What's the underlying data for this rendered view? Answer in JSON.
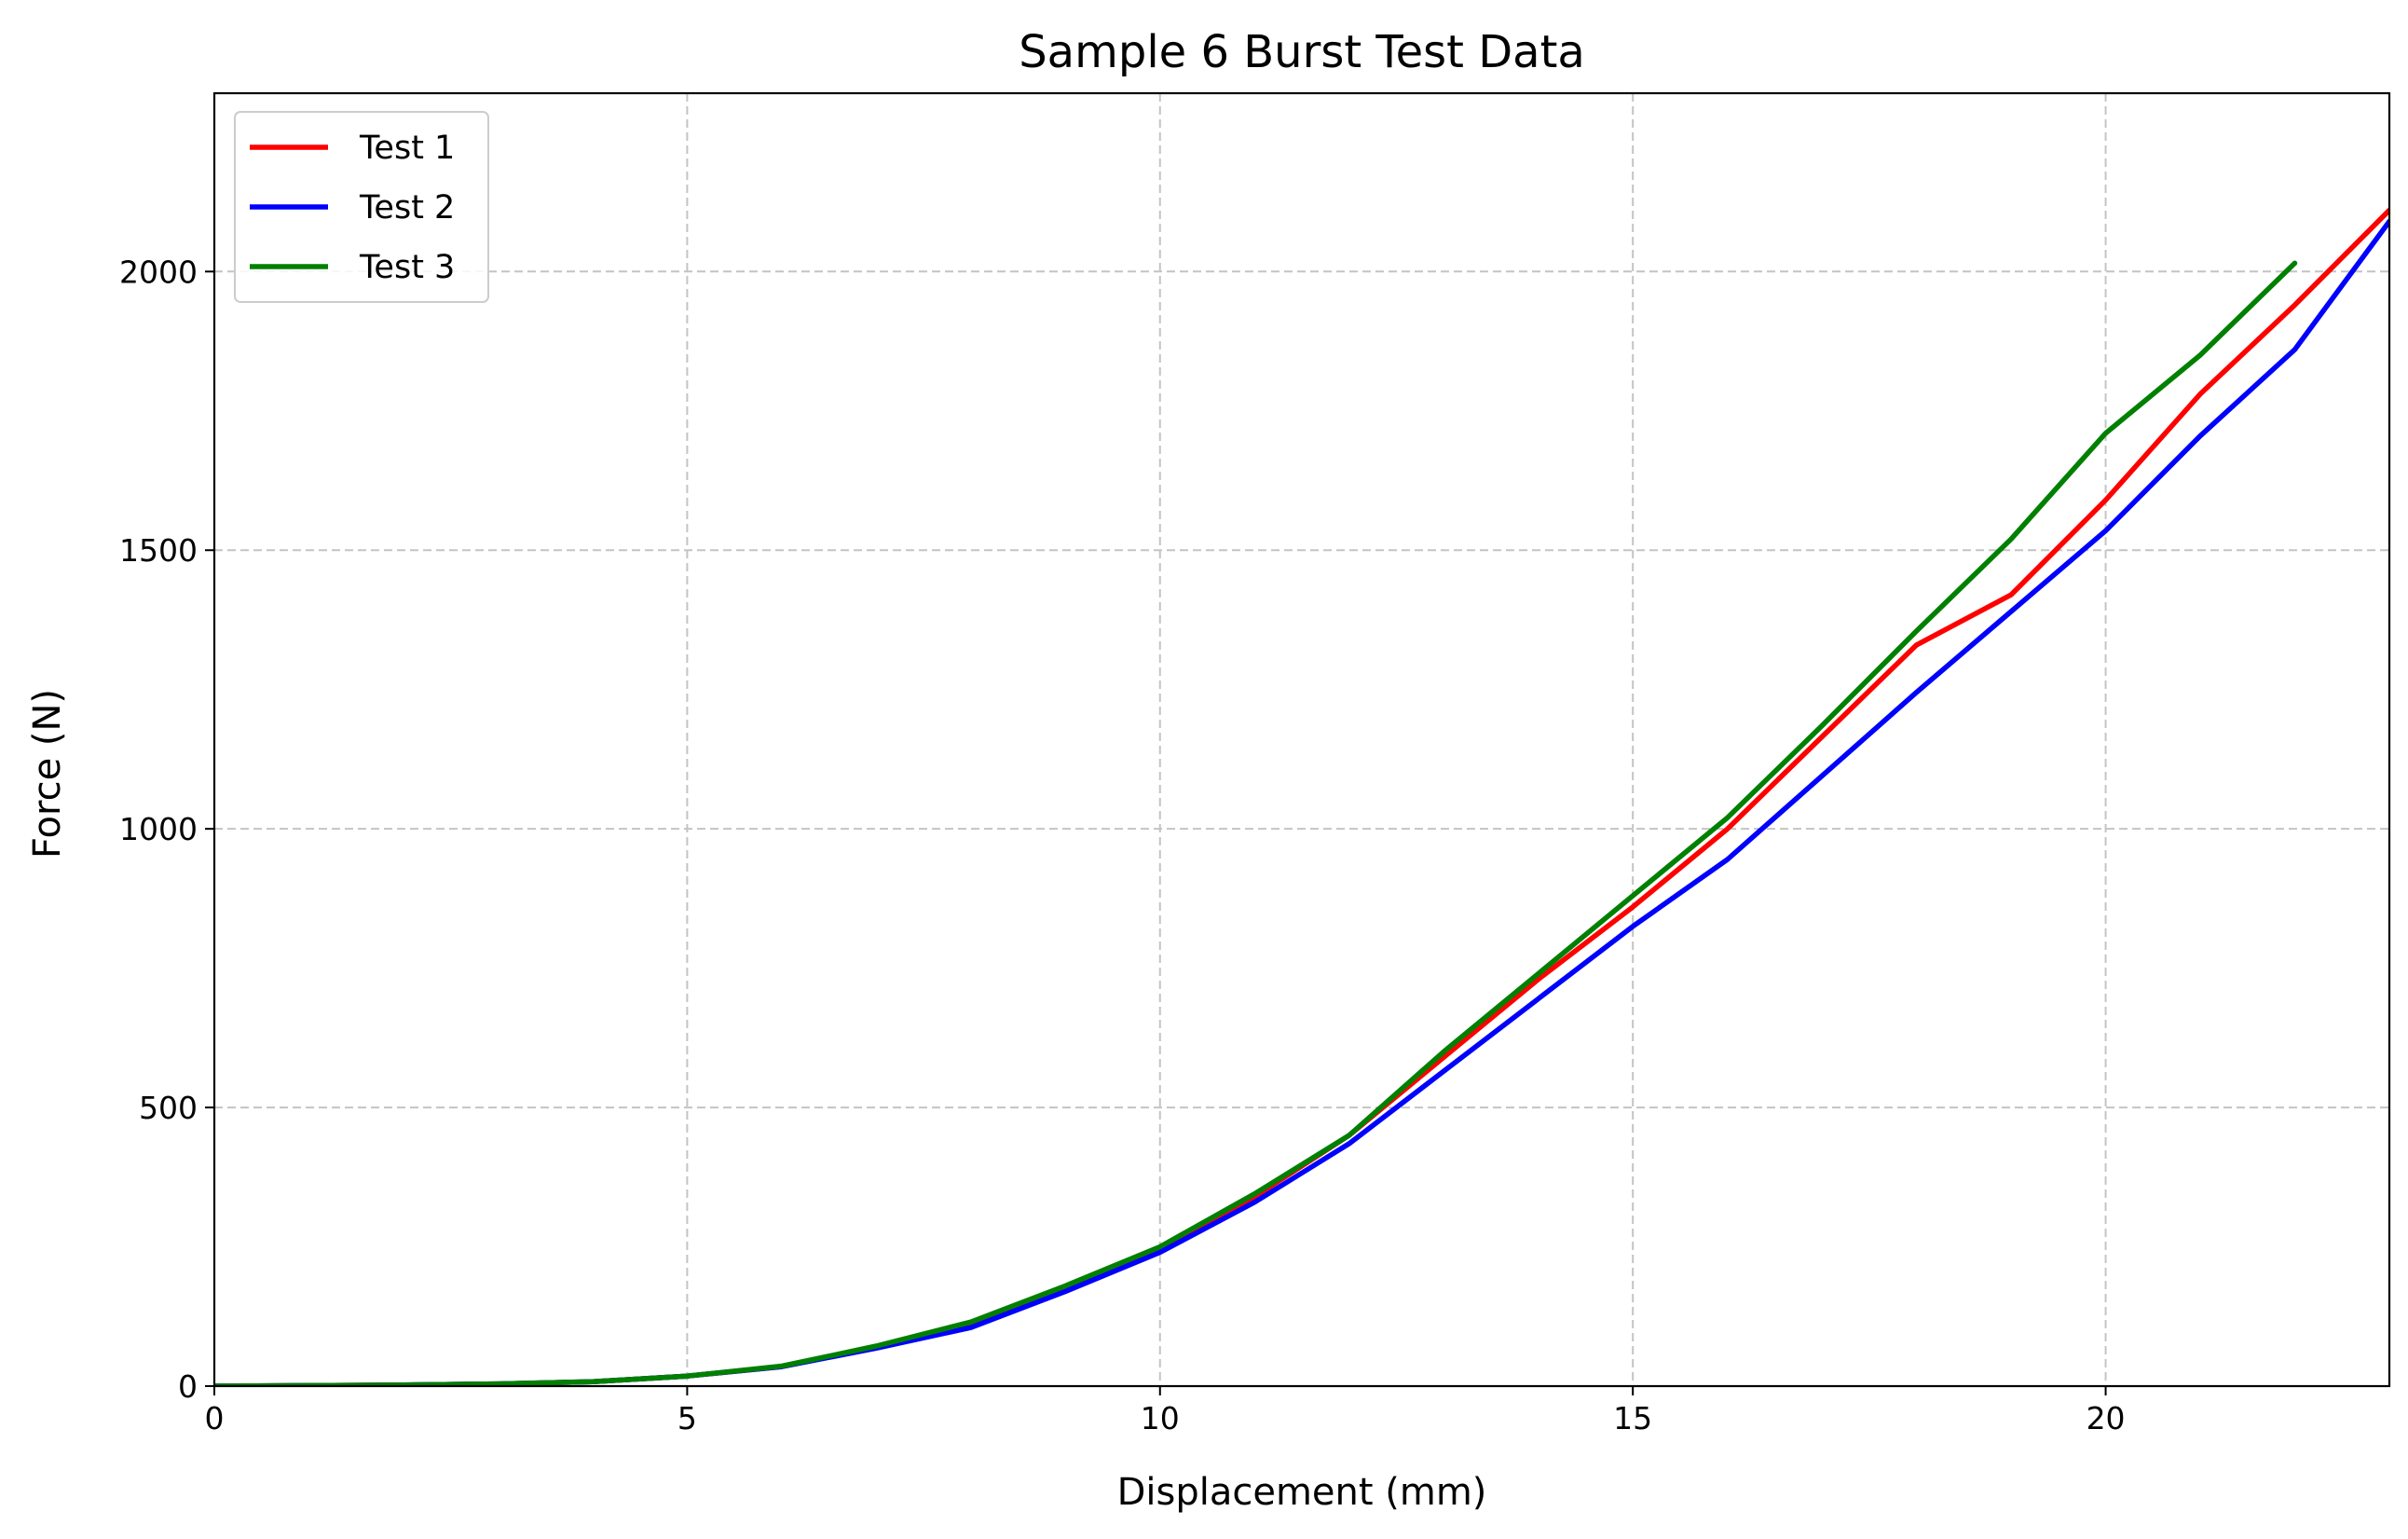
{
  "chart_data": {
    "type": "line",
    "title": "Sample 6 Burst Test Data",
    "xlabel": "Displacement (mm)",
    "ylabel": "Force (N)",
    "xlim": [
      0,
      23
    ],
    "ylim": [
      0,
      2320
    ],
    "xticks": [
      0,
      5,
      10,
      15,
      20
    ],
    "yticks": [
      0,
      500,
      1000,
      1500,
      2000
    ],
    "grid": true,
    "legend_position": "upper-left",
    "series": [
      {
        "name": "Test 1",
        "color": "#ff0000",
        "x": [
          0,
          1,
          2,
          3,
          4,
          5,
          6,
          7,
          8,
          9,
          10,
          11,
          12,
          13,
          14,
          15,
          16,
          17,
          18,
          19,
          20,
          21,
          22,
          23
        ],
        "y": [
          0,
          1,
          2,
          4,
          8,
          18,
          35,
          70,
          110,
          175,
          245,
          340,
          450,
          590,
          730,
          860,
          1000,
          1165,
          1330,
          1420,
          1590,
          1780,
          1940,
          2110
        ]
      },
      {
        "name": "Test 2",
        "color": "#0000ff",
        "x": [
          0,
          1,
          2,
          3,
          4,
          5,
          6,
          7,
          8,
          9,
          10,
          11,
          12,
          13,
          14,
          15,
          16,
          17,
          18,
          19,
          20,
          21,
          22,
          23
        ],
        "y": [
          0,
          1,
          2,
          4,
          8,
          18,
          35,
          68,
          105,
          170,
          240,
          330,
          435,
          565,
          695,
          825,
          945,
          1095,
          1245,
          1390,
          1535,
          1705,
          1860,
          2090
        ]
      },
      {
        "name": "Test 3",
        "color": "#008000",
        "x": [
          0,
          1,
          2,
          3,
          4,
          5,
          6,
          7,
          8,
          9,
          10,
          11,
          12,
          13,
          14,
          15,
          16,
          17,
          18,
          19,
          20,
          21,
          22
        ],
        "y": [
          0,
          1,
          2,
          4,
          8,
          18,
          36,
          72,
          115,
          180,
          250,
          345,
          450,
          600,
          740,
          880,
          1020,
          1185,
          1355,
          1520,
          1710,
          1850,
          2015
        ]
      }
    ]
  }
}
